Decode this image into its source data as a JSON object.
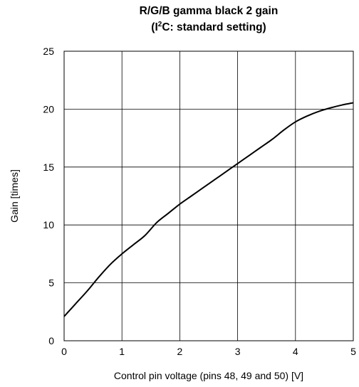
{
  "chart_data": {
    "type": "line",
    "title_line1": "R/G/B gamma black 2 gain",
    "title_line2_prefix": "(I",
    "title_line2_sup": "2",
    "title_line2_suffix": "C: standard setting)",
    "xlabel": "Control pin voltage (pins 48, 49 and 50) [V]",
    "ylabel": "Gain [times]",
    "xlim": [
      0,
      5
    ],
    "ylim": [
      0,
      25
    ],
    "x_ticks": [
      "0",
      "1",
      "2",
      "3",
      "4",
      "5"
    ],
    "y_ticks": [
      "0",
      "5",
      "10",
      "15",
      "20",
      "25"
    ],
    "grid": true,
    "series": [
      {
        "x": [
          0,
          0.2,
          0.4,
          0.6,
          0.8,
          1.0,
          1.2,
          1.4,
          1.6,
          1.8,
          2.0,
          2.2,
          2.4,
          2.6,
          2.8,
          3.0,
          3.2,
          3.4,
          3.6,
          3.8,
          4.0,
          4.2,
          4.4,
          4.6,
          4.8,
          5.0
        ],
        "values": [
          2.1,
          3.2,
          4.3,
          5.5,
          6.6,
          7.5,
          8.3,
          9.1,
          10.2,
          11.0,
          11.8,
          12.5,
          13.2,
          13.9,
          14.6,
          15.3,
          16.0,
          16.7,
          17.4,
          18.2,
          18.9,
          19.4,
          19.8,
          20.1,
          20.35,
          20.55
        ]
      }
    ]
  }
}
